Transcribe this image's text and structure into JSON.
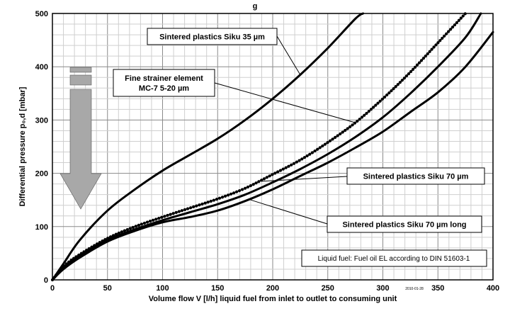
{
  "chart_data": {
    "type": "line",
    "title": "",
    "xlabel": "Volume flow V [l/h] liquid fuel from inlet to outlet to consuming unit",
    "ylabel": "Differential pressure  p₀,d  [mbar]",
    "xlim": [
      0,
      400
    ],
    "ylim": [
      0,
      500
    ],
    "x_ticks": [
      0,
      50,
      100,
      150,
      200,
      250,
      300,
      350,
      400
    ],
    "y_ticks": [
      0,
      100,
      200,
      300,
      400,
      500
    ],
    "x_minor_step": 10,
    "y_minor_step": 20,
    "grid": true,
    "series": [
      {
        "name": "Sintered plastics Siku 35 µm",
        "style": "solid",
        "points": [
          [
            0,
            0
          ],
          [
            10,
            30
          ],
          [
            25,
            75
          ],
          [
            50,
            130
          ],
          [
            75,
            170
          ],
          [
            100,
            205
          ],
          [
            125,
            235
          ],
          [
            150,
            265
          ],
          [
            175,
            300
          ],
          [
            200,
            340
          ],
          [
            225,
            385
          ],
          [
            250,
            435
          ],
          [
            275,
            490
          ],
          [
            282,
            500
          ]
        ]
      },
      {
        "name": "Fine strainer element MC-7 5-20 µm",
        "style": "dotted",
        "points": [
          [
            0,
            0
          ],
          [
            10,
            25
          ],
          [
            25,
            48
          ],
          [
            50,
            78
          ],
          [
            75,
            100
          ],
          [
            100,
            118
          ],
          [
            125,
            135
          ],
          [
            150,
            152
          ],
          [
            175,
            172
          ],
          [
            200,
            198
          ],
          [
            225,
            225
          ],
          [
            250,
            258
          ],
          [
            275,
            295
          ],
          [
            300,
            340
          ],
          [
            325,
            390
          ],
          [
            350,
            445
          ],
          [
            375,
            500
          ]
        ]
      },
      {
        "name": "Sintered plastics Siku 70 µm",
        "style": "solid",
        "points": [
          [
            0,
            0
          ],
          [
            10,
            22
          ],
          [
            25,
            45
          ],
          [
            50,
            75
          ],
          [
            75,
            95
          ],
          [
            100,
            112
          ],
          [
            125,
            127
          ],
          [
            150,
            142
          ],
          [
            175,
            160
          ],
          [
            200,
            183
          ],
          [
            225,
            208
          ],
          [
            250,
            236
          ],
          [
            275,
            268
          ],
          [
            300,
            305
          ],
          [
            325,
            350
          ],
          [
            350,
            400
          ],
          [
            375,
            455
          ],
          [
            389,
            500
          ]
        ]
      },
      {
        "name": "Sintered plastics Siku 70 µm long",
        "style": "solid",
        "points": [
          [
            0,
            0
          ],
          [
            10,
            20
          ],
          [
            25,
            42
          ],
          [
            50,
            72
          ],
          [
            75,
            92
          ],
          [
            100,
            108
          ],
          [
            125,
            118
          ],
          [
            150,
            130
          ],
          [
            175,
            148
          ],
          [
            200,
            170
          ],
          [
            225,
            195
          ],
          [
            250,
            220
          ],
          [
            275,
            248
          ],
          [
            300,
            278
          ],
          [
            325,
            315
          ],
          [
            350,
            352
          ],
          [
            375,
            400
          ],
          [
            400,
            465
          ]
        ]
      }
    ],
    "callouts": [
      {
        "lines": [
          "Sintered plastics Siku 35 µm"
        ],
        "target": [
          225,
          385
        ]
      },
      {
        "lines": [
          "Fine strainer element",
          "MC-7 5-20 µm"
        ],
        "target": [
          275,
          295
        ]
      },
      {
        "lines": [
          "Sintered plastics Siku 70 µm"
        ],
        "target": [
          190,
          185
        ]
      },
      {
        "lines": [
          "Sintered plastics Siku 70 µm long"
        ],
        "target": [
          180,
          150
        ]
      }
    ],
    "note": "Liquid fuel: Fuel oil EL according to DIN 51603-1",
    "date_stamp": "2010-01-28",
    "header_fragment": "g",
    "arrow_color": "#a8a8a8"
  }
}
